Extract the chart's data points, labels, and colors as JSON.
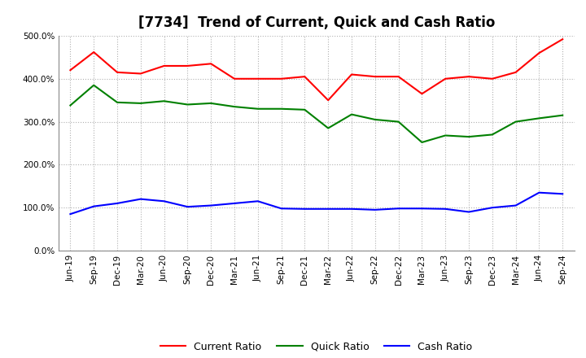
{
  "title": "[7734]  Trend of Current, Quick and Cash Ratio",
  "labels": [
    "Jun-19",
    "Sep-19",
    "Dec-19",
    "Mar-20",
    "Jun-20",
    "Sep-20",
    "Dec-20",
    "Mar-21",
    "Jun-21",
    "Sep-21",
    "Dec-21",
    "Mar-22",
    "Jun-22",
    "Sep-22",
    "Dec-22",
    "Mar-23",
    "Jun-23",
    "Sep-23",
    "Dec-23",
    "Mar-24",
    "Jun-24",
    "Sep-24"
  ],
  "current_ratio": [
    420,
    462,
    415,
    412,
    430,
    430,
    435,
    400,
    400,
    400,
    405,
    350,
    410,
    405,
    405,
    365,
    400,
    405,
    400,
    415,
    460,
    492
  ],
  "quick_ratio": [
    338,
    385,
    345,
    343,
    348,
    340,
    343,
    335,
    330,
    330,
    328,
    285,
    317,
    305,
    300,
    252,
    268,
    265,
    270,
    300,
    308,
    315
  ],
  "cash_ratio": [
    85,
    103,
    110,
    120,
    115,
    102,
    105,
    110,
    115,
    98,
    97,
    97,
    97,
    95,
    98,
    98,
    97,
    90,
    100,
    105,
    135,
    132
  ],
  "ylim": [
    0,
    500
  ],
  "yticks": [
    0,
    100,
    200,
    300,
    400,
    500
  ],
  "yticklabels": [
    "0.0%",
    "100.0%",
    "200.0%",
    "300.0%",
    "400.0%",
    "500.0%"
  ],
  "current_color": "#ff0000",
  "quick_color": "#008000",
  "cash_color": "#0000ff",
  "background_color": "#ffffff",
  "grid_color": "#b0b0b0",
  "title_fontsize": 12,
  "tick_fontsize": 7.5,
  "legend_labels": [
    "Current Ratio",
    "Quick Ratio",
    "Cash Ratio"
  ]
}
